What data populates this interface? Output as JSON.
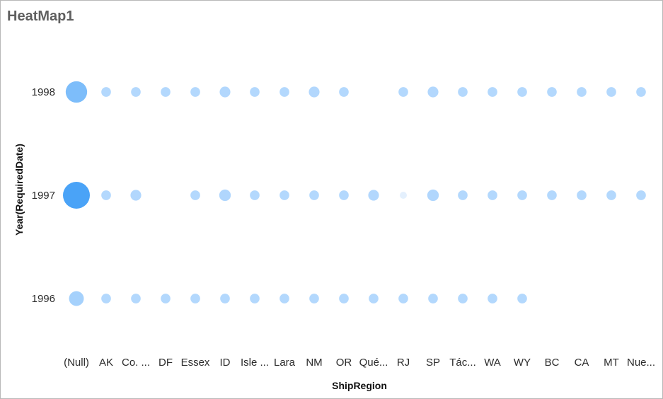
{
  "widget": {
    "title": "HeatMap1"
  },
  "colors": {
    "low": "#d9ebff",
    "high": "#4aa3f7"
  },
  "chart_data": {
    "type": "heatmap",
    "title": "HeatMap1",
    "xlabel": "ShipRegion",
    "ylabel": "Year(RequiredDate)",
    "x_categories": [
      "(Null)",
      "AK",
      "Co. ...",
      "DF",
      "Essex",
      "ID",
      "Isle ...",
      "Lara",
      "NM",
      "OR",
      "Qué...",
      "RJ",
      "SP",
      "Tác...",
      "WA",
      "WY",
      "BC",
      "CA",
      "MT",
      "Nue..."
    ],
    "y_categories": [
      "1998",
      "1997",
      "1996"
    ],
    "series": [
      {
        "year": "1998",
        "values": [
          32,
          2,
          2,
          2,
          2,
          3,
          2,
          2,
          3,
          2,
          null,
          2,
          3,
          2,
          2,
          2,
          2,
          2,
          2,
          2
        ]
      },
      {
        "year": "1997",
        "values": [
          60,
          2,
          3,
          null,
          2,
          4,
          2,
          2,
          2,
          2,
          3,
          1,
          4,
          2,
          2,
          2,
          2,
          2,
          2,
          2
        ]
      },
      {
        "year": "1996",
        "values": [
          10,
          2,
          2,
          2,
          2,
          2,
          2,
          2,
          2,
          2,
          2,
          2,
          2,
          2,
          2,
          2,
          null,
          null,
          null,
          null
        ]
      }
    ],
    "legend": "none",
    "grid": false
  }
}
